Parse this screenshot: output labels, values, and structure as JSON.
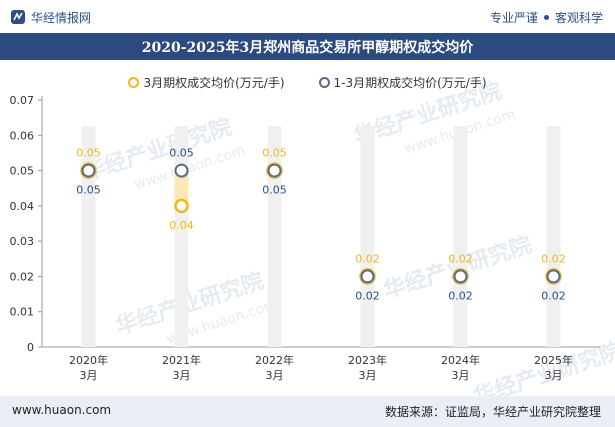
{
  "header": {
    "brand_name": "华经情报网",
    "tag1": "专业严谨",
    "tag2": "客观科学"
  },
  "watermark": {
    "text": "华经产业研究院",
    "url": "www.huaon.com"
  },
  "footer": {
    "website": "www.huaon.com",
    "source": "数据来源：证监局，华经产业研究院整理"
  },
  "colors": {
    "title_bg": "#2b4b80",
    "series1": "#f2b61b",
    "series2": "#5a6a86",
    "label1": "#f2b61b",
    "label2": "#2a4f86",
    "highlight_bar": "#fbe9b3",
    "bg_bar": "#f0f0f0"
  },
  "chart_data": {
    "type": "line",
    "title": "2020-2025年3月郑州商品交易所甲醇期权成交均价",
    "categories": [
      "2020年\n3月",
      "2021年\n3月",
      "2022年\n3月",
      "2023年\n3月",
      "2024年\n3月",
      "2025年\n3月"
    ],
    "series": [
      {
        "name": "3月期权成交均价(万元/手)",
        "values": [
          0.05,
          0.04,
          0.05,
          0.02,
          0.02,
          0.02
        ]
      },
      {
        "name": "1-3月期权成交均价(万元/手)",
        "values": [
          0.05,
          0.05,
          0.05,
          0.02,
          0.02,
          0.02
        ]
      }
    ],
    "y_ticks": [
      "0",
      "0.01",
      "0.02",
      "0.03",
      "0.04",
      "0.05",
      "0.06",
      "0.07"
    ],
    "ylim": [
      0,
      0.07
    ],
    "xlabel": "",
    "ylabel": "",
    "legend": "top-center",
    "grid": false
  }
}
